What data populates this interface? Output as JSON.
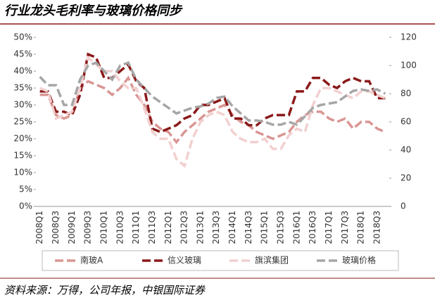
{
  "chart_data": {
    "type": "line",
    "title": "行业龙头毛利率与玻璃价格同步",
    "source": "资料来源：万得，公司年报，中银国际证券",
    "categories": [
      "2008Q1",
      null,
      "2008Q3",
      null,
      "2009Q1",
      null,
      "2009Q3",
      null,
      "2010Q1",
      null,
      "2010Q3",
      null,
      "2011Q1",
      null,
      "2011Q3",
      null,
      "2012Q1",
      null,
      "2012Q3",
      null,
      "2013Q1",
      null,
      "2013Q3",
      null,
      "2014Q1",
      null,
      "2014Q3",
      null,
      "2015Q1",
      null,
      "2015Q3",
      null,
      "2016Q1",
      null,
      "2016Q3",
      null,
      "2017Q1",
      null,
      "2017Q3",
      null,
      "2018Q1",
      null,
      "2018Q3",
      null
    ],
    "series": [
      {
        "name": "南玻A",
        "color": "#d99694",
        "values": [
          33,
          33,
          27,
          26,
          27,
          35,
          37,
          36,
          35,
          33,
          35,
          38,
          33,
          30,
          25,
          23,
          22,
          19,
          22,
          24,
          26,
          28,
          29,
          30,
          27,
          25,
          24,
          22,
          21,
          20,
          21,
          22,
          25,
          27,
          28,
          28,
          26,
          25,
          26,
          23,
          25,
          25,
          23,
          22
        ]
      },
      {
        "name": "信义玻璃",
        "color": "#8b1a1a",
        "values": [
          34,
          34,
          28,
          28,
          27,
          33,
          45,
          44,
          38,
          38,
          40,
          42,
          37,
          35,
          23,
          22,
          23,
          24,
          26,
          27,
          30,
          30,
          31,
          32,
          26,
          26,
          24,
          24,
          26,
          27,
          27,
          27,
          34,
          34,
          38,
          38,
          36,
          35,
          37,
          38,
          37,
          37,
          32,
          32
        ]
      },
      {
        "name": "旗滨集团",
        "color": "#f2d0d0",
        "values": [
          35,
          34,
          26,
          27,
          28,
          35,
          44,
          42,
          40,
          40,
          37,
          35,
          35,
          29,
          22,
          20,
          20,
          14,
          12,
          20,
          25,
          27,
          28,
          27,
          22,
          20,
          19,
          19,
          20,
          17,
          17,
          21,
          23,
          22,
          30,
          35,
          35,
          34,
          33,
          32,
          34,
          34,
          33,
          32
        ]
      },
      {
        "name": "玻璃价格",
        "color": "#a6a6a6",
        "axis": "y2",
        "values": [
          92,
          86,
          86,
          72,
          72,
          90,
          100,
          102,
          96,
          90,
          100,
          102,
          90,
          84,
          78,
          74,
          70,
          66,
          68,
          70,
          71,
          73,
          77,
          78,
          71,
          66,
          61,
          61,
          60,
          58,
          58,
          60,
          58,
          64,
          70,
          72,
          73,
          74,
          78,
          82,
          83,
          82,
          83,
          80
        ]
      }
    ],
    "ylim": [
      0,
      50
    ],
    "yticks": [
      {
        "value": 0,
        "label": "0%"
      },
      {
        "value": 5,
        "label": "5%"
      },
      {
        "value": 10,
        "label": "10%"
      },
      {
        "value": 15,
        "label": "15%"
      },
      {
        "value": 20,
        "label": "20%"
      },
      {
        "value": 25,
        "label": "25%"
      },
      {
        "value": 30,
        "label": "30%"
      },
      {
        "value": 35,
        "label": "35%"
      },
      {
        "value": 40,
        "label": "40%"
      },
      {
        "value": 45,
        "label": "45%"
      },
      {
        "value": 50,
        "label": "50%"
      }
    ],
    "y2lim": [
      0,
      120
    ],
    "y2ticks": [
      0,
      20,
      40,
      60,
      80,
      100,
      120
    ],
    "grid": false,
    "legend": "bottom"
  }
}
